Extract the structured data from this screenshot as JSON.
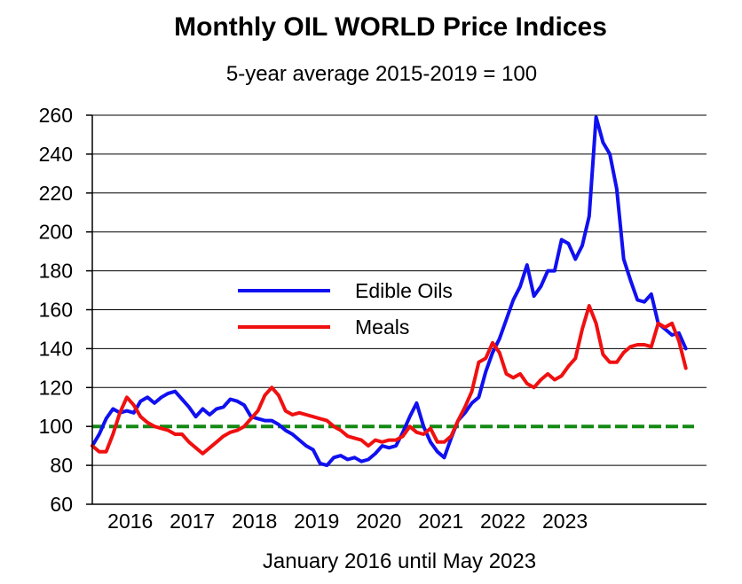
{
  "chart_data": {
    "type": "line",
    "title": "Monthly OIL WORLD Price Indices",
    "subtitle": "5-year average 2015-2019 = 100",
    "xlabel": "January 2016 until May 2023",
    "ylabel": "",
    "ylim": [
      60,
      260
    ],
    "yticks": [
      60,
      80,
      100,
      120,
      140,
      160,
      180,
      200,
      220,
      240,
      260
    ],
    "xlim": [
      0,
      89
    ],
    "x_ticks": [
      {
        "label": "2016",
        "x": 5.5
      },
      {
        "label": "2017",
        "x": 14.5
      },
      {
        "label": "2018",
        "x": 23.5
      },
      {
        "label": "2019",
        "x": 32.5
      },
      {
        "label": "2020",
        "x": 41.5
      },
      {
        "label": "2021",
        "x": 50.5
      },
      {
        "label": "2022",
        "x": 59.5
      },
      {
        "label": "2023",
        "x": 68.5
      }
    ],
    "grid": "horizontal",
    "legend_position": "center-left",
    "reference_line": {
      "y": 100,
      "color": "#138a13",
      "style": "dashed"
    },
    "series": [
      {
        "name": "Edible Oils",
        "color": "#1010f0",
        "points": [
          [
            0,
            90
          ],
          [
            1,
            96
          ],
          [
            2,
            104
          ],
          [
            3,
            109
          ],
          [
            4,
            107
          ],
          [
            5,
            108
          ],
          [
            6,
            107
          ],
          [
            7,
            113
          ],
          [
            8,
            115
          ],
          [
            9,
            112
          ],
          [
            10,
            115
          ],
          [
            11,
            117
          ],
          [
            12,
            118
          ],
          [
            13,
            114
          ],
          [
            14,
            110
          ],
          [
            15,
            105
          ],
          [
            16,
            109
          ],
          [
            17,
            106
          ],
          [
            18,
            109
          ],
          [
            19,
            110
          ],
          [
            20,
            114
          ],
          [
            21,
            113
          ],
          [
            22,
            111
          ],
          [
            23,
            105
          ],
          [
            24,
            104
          ],
          [
            25,
            103
          ],
          [
            26,
            103
          ],
          [
            27,
            101
          ],
          [
            28,
            98
          ],
          [
            29,
            96
          ],
          [
            30,
            93
          ],
          [
            31,
            90
          ],
          [
            32,
            88
          ],
          [
            33,
            81
          ],
          [
            34,
            80
          ],
          [
            35,
            84
          ],
          [
            36,
            85
          ],
          [
            37,
            83
          ],
          [
            38,
            84
          ],
          [
            39,
            82
          ],
          [
            40,
            83
          ],
          [
            41,
            86
          ],
          [
            42,
            90
          ],
          [
            43,
            89
          ],
          [
            44,
            90
          ],
          [
            45,
            97
          ],
          [
            46,
            105
          ],
          [
            47,
            112
          ],
          [
            48,
            100
          ],
          [
            49,
            92
          ],
          [
            50,
            87
          ],
          [
            51,
            84
          ],
          [
            52,
            94
          ],
          [
            53,
            103
          ],
          [
            54,
            107
          ],
          [
            55,
            112
          ],
          [
            56,
            115
          ],
          [
            57,
            128
          ],
          [
            58,
            138
          ],
          [
            59,
            145
          ],
          [
            60,
            155
          ],
          [
            61,
            165
          ],
          [
            62,
            172
          ],
          [
            63,
            183
          ],
          [
            64,
            167
          ],
          [
            65,
            172
          ],
          [
            66,
            180
          ],
          [
            67,
            180
          ],
          [
            68,
            196
          ],
          [
            69,
            194
          ],
          [
            70,
            186
          ],
          [
            71,
            193
          ],
          [
            72,
            208
          ],
          [
            73,
            259
          ],
          [
            74,
            246
          ],
          [
            75,
            240
          ],
          [
            76,
            222
          ],
          [
            77,
            186
          ],
          [
            78,
            175
          ],
          [
            79,
            165
          ],
          [
            80,
            164
          ],
          [
            81,
            168
          ],
          [
            82,
            153
          ],
          [
            83,
            150
          ],
          [
            84,
            147
          ],
          [
            85,
            148
          ],
          [
            86,
            140
          ]
        ]
      },
      {
        "name": "Meals",
        "color": "#f01010",
        "points": [
          [
            0,
            90
          ],
          [
            1,
            87
          ],
          [
            2,
            87
          ],
          [
            3,
            96
          ],
          [
            4,
            107
          ],
          [
            5,
            115
          ],
          [
            6,
            111
          ],
          [
            7,
            105
          ],
          [
            8,
            102
          ],
          [
            9,
            100
          ],
          [
            10,
            99
          ],
          [
            11,
            98
          ],
          [
            12,
            96
          ],
          [
            13,
            96
          ],
          [
            14,
            92
          ],
          [
            15,
            89
          ],
          [
            16,
            86
          ],
          [
            17,
            89
          ],
          [
            18,
            92
          ],
          [
            19,
            95
          ],
          [
            20,
            97
          ],
          [
            21,
            98
          ],
          [
            22,
            100
          ],
          [
            23,
            104
          ],
          [
            24,
            108
          ],
          [
            25,
            116
          ],
          [
            26,
            120
          ],
          [
            27,
            116
          ],
          [
            28,
            108
          ],
          [
            29,
            106
          ],
          [
            30,
            107
          ],
          [
            31,
            106
          ],
          [
            32,
            105
          ],
          [
            33,
            104
          ],
          [
            34,
            103
          ],
          [
            35,
            100
          ],
          [
            36,
            98
          ],
          [
            37,
            95
          ],
          [
            38,
            94
          ],
          [
            39,
            93
          ],
          [
            40,
            90
          ],
          [
            41,
            93
          ],
          [
            42,
            92
          ],
          [
            43,
            93
          ],
          [
            44,
            93
          ],
          [
            45,
            95
          ],
          [
            46,
            100
          ],
          [
            47,
            97
          ],
          [
            48,
            96
          ],
          [
            49,
            99
          ],
          [
            50,
            92
          ],
          [
            51,
            92
          ],
          [
            52,
            95
          ],
          [
            53,
            103
          ],
          [
            54,
            110
          ],
          [
            55,
            118
          ],
          [
            56,
            133
          ],
          [
            57,
            135
          ],
          [
            58,
            143
          ],
          [
            59,
            138
          ],
          [
            60,
            127
          ],
          [
            61,
            125
          ],
          [
            62,
            127
          ],
          [
            63,
            122
          ],
          [
            64,
            120
          ],
          [
            65,
            124
          ],
          [
            66,
            127
          ],
          [
            67,
            124
          ],
          [
            68,
            126
          ],
          [
            69,
            131
          ],
          [
            70,
            135
          ],
          [
            71,
            150
          ],
          [
            72,
            162
          ],
          [
            73,
            153
          ],
          [
            74,
            137
          ],
          [
            75,
            133
          ],
          [
            76,
            133
          ],
          [
            77,
            138
          ],
          [
            78,
            141
          ],
          [
            79,
            142
          ],
          [
            80,
            142
          ],
          [
            81,
            141
          ],
          [
            82,
            153
          ],
          [
            83,
            151
          ],
          [
            84,
            153
          ],
          [
            85,
            144
          ],
          [
            86,
            130
          ]
        ]
      }
    ]
  }
}
